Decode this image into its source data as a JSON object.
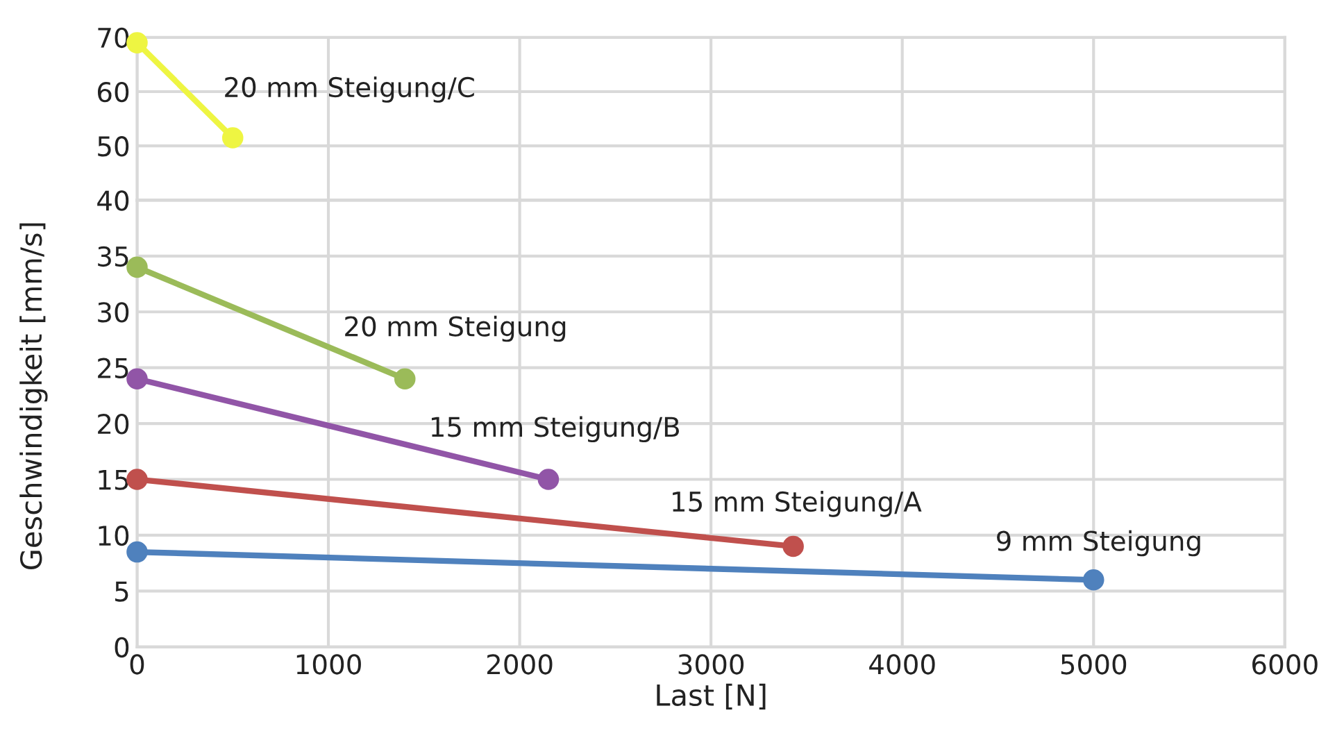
{
  "chart_data": [
    {
      "type": "line",
      "ylabel": "Geschwindigkeit [mm/s]",
      "xlim": [
        0,
        6000
      ],
      "xticks": [
        0,
        1000,
        2000,
        3000,
        4000,
        5000,
        6000
      ],
      "ylim": [
        40,
        70
      ],
      "yticks": [
        40,
        50,
        60,
        70
      ],
      "tick_labels": "y",
      "grid": true,
      "marker": "circle",
      "legend": false,
      "series": [
        {
          "name": "20 mm Steigung/C",
          "color": "#eef542",
          "x": [
            0,
            500
          ],
          "values": [
            69,
            51.5
          ]
        }
      ]
    },
    {
      "type": "line",
      "xlabel": "Last [N]",
      "xlim": [
        0,
        6000
      ],
      "xticks": [
        0,
        1000,
        2000,
        3000,
        4000,
        5000,
        6000
      ],
      "ylim": [
        0,
        40
      ],
      "yticks": [
        0,
        5,
        10,
        15,
        20,
        25,
        30,
        35,
        {
          "value": 40,
          "label": null
        }
      ],
      "grid": true,
      "marker": "circle",
      "legend": false,
      "series": [
        {
          "name": "20 mm Steigung",
          "color": "#9bbb59",
          "x": [
            0,
            1400
          ],
          "values": [
            34,
            24
          ]
        },
        {
          "name": "15 mm Steigung/B",
          "color": "#9155a7",
          "x": [
            0,
            2150
          ],
          "values": [
            24,
            15
          ]
        },
        {
          "name": "15 mm Steigung/A",
          "color": "#c0504d",
          "x": [
            0,
            3430
          ],
          "values": [
            15,
            9
          ]
        },
        {
          "name": "9 mm Steigung",
          "color": "#4f81bd",
          "x": [
            0,
            5000
          ],
          "values": [
            8.5,
            6
          ]
        }
      ]
    }
  ]
}
